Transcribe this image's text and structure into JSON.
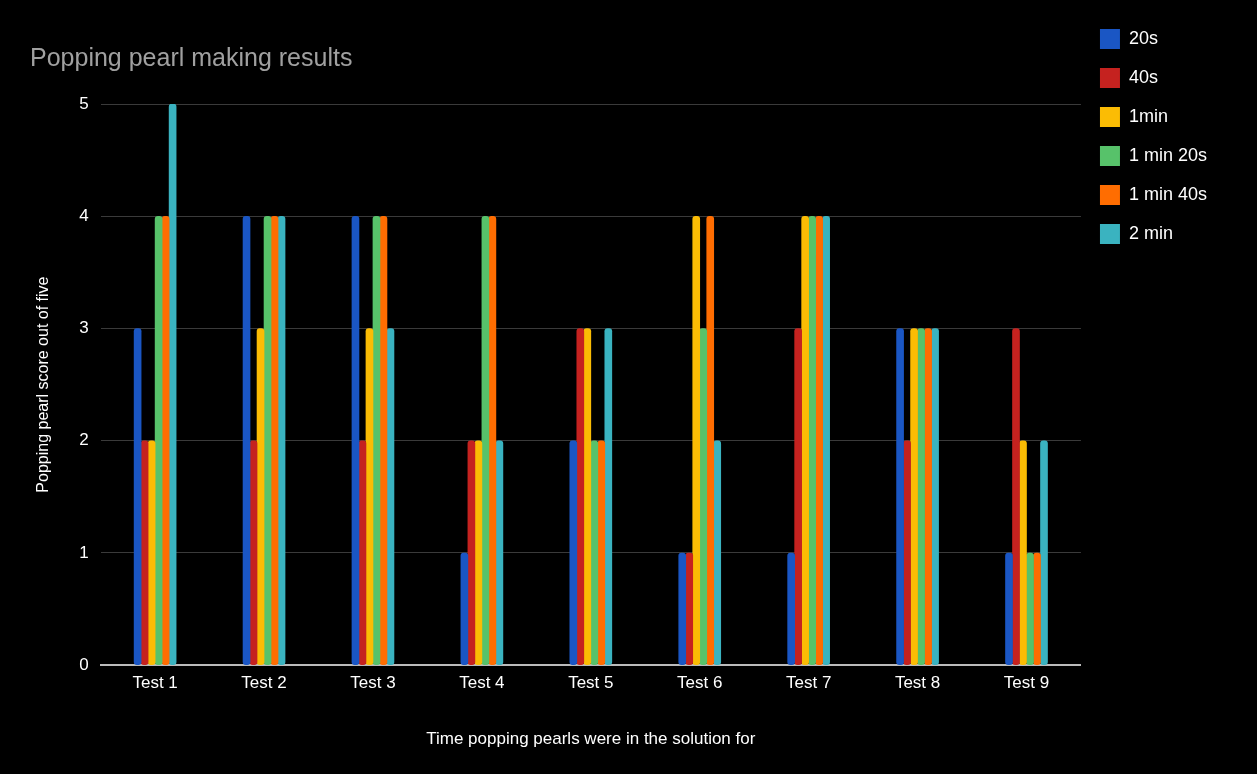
{
  "chart_data": {
    "type": "bar",
    "title": "Popping pearl making results",
    "xlabel": "Time popping pearls were in the solution for",
    "ylabel": "Popping pearl score out of five",
    "categories": [
      "Test 1",
      "Test 2",
      "Test 3",
      "Test 4",
      "Test 5",
      "Test 6",
      "Test 7",
      "Test 8",
      "Test 9"
    ],
    "series": [
      {
        "name": "20s",
        "color": "#1a56c4",
        "values": [
          3,
          4,
          4,
          1,
          2,
          1,
          1,
          3,
          1
        ]
      },
      {
        "name": "40s",
        "color": "#c5221f",
        "values": [
          2,
          2,
          2,
          2,
          3,
          1,
          3,
          2,
          3
        ]
      },
      {
        "name": "1min",
        "color": "#fbbc04",
        "values": [
          2,
          3,
          3,
          2,
          3,
          4,
          4,
          3,
          2
        ]
      },
      {
        "name": "1 min 20s",
        "color": "#57c26a",
        "values": [
          4,
          4,
          4,
          4,
          2,
          3,
          4,
          3,
          1
        ]
      },
      {
        "name": "1 min 40s",
        "color": "#ff6d01",
        "values": [
          4,
          4,
          4,
          4,
          2,
          4,
          4,
          3,
          1
        ]
      },
      {
        "name": "2 min",
        "color": "#3ab3c0",
        "values": [
          5,
          4,
          3,
          2,
          3,
          2,
          4,
          3,
          2
        ]
      }
    ],
    "ylim": [
      0,
      5
    ],
    "yticks": [
      0,
      1,
      2,
      3,
      4,
      5
    ],
    "grid": "y",
    "legend": "top right"
  }
}
